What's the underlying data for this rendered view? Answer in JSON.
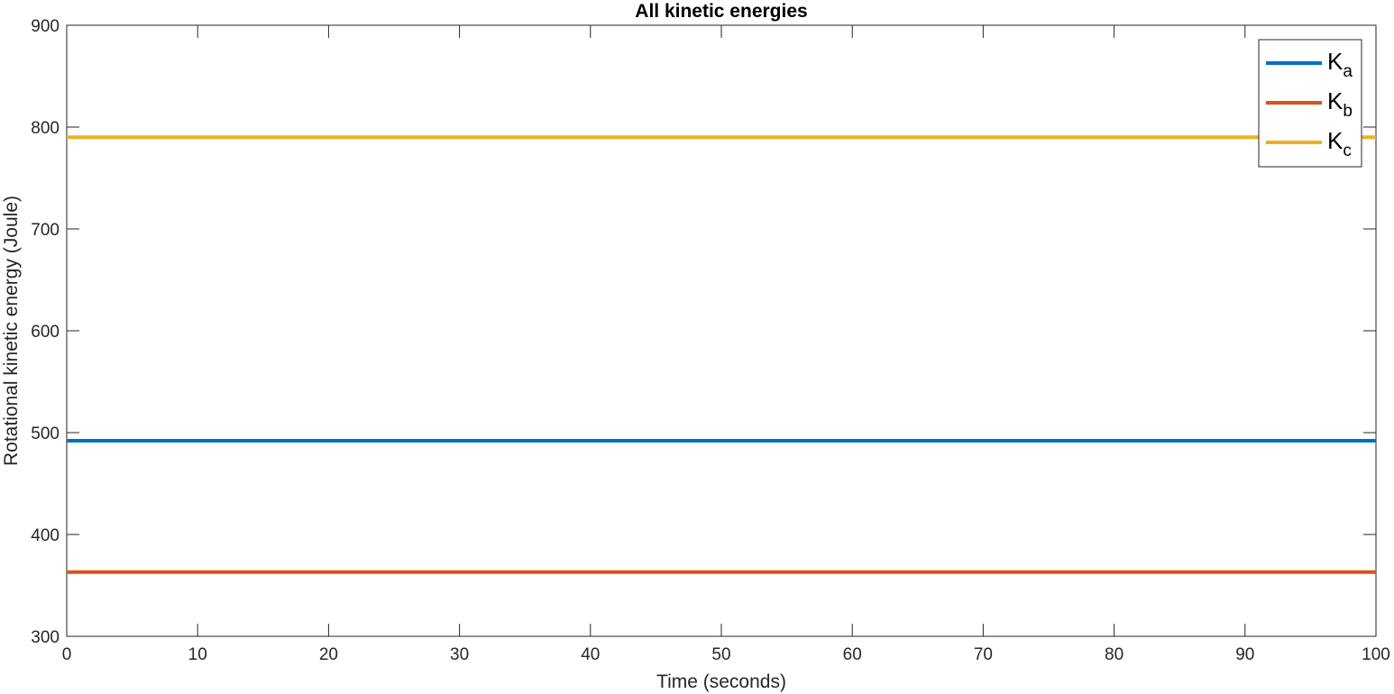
{
  "chart_data": {
    "type": "line",
    "title": "All kinetic energies",
    "xlabel": "Time (seconds)",
    "ylabel": "Rotational kinetic energy (Joule)",
    "xlim": [
      0,
      100
    ],
    "ylim": [
      300,
      900
    ],
    "xticks": [
      0,
      10,
      20,
      30,
      40,
      50,
      60,
      70,
      80,
      90,
      100
    ],
    "yticks": [
      300,
      400,
      500,
      600,
      700,
      800,
      900
    ],
    "grid": false,
    "legend_position": "top-right",
    "series": [
      {
        "name_base": "K",
        "name_sub": "a",
        "color": "#0072BD",
        "x": [
          0,
          100
        ],
        "y": [
          492,
          492
        ]
      },
      {
        "name_base": "K",
        "name_sub": "b",
        "color": "#D95319",
        "x": [
          0,
          100
        ],
        "y": [
          363,
          363
        ]
      },
      {
        "name_base": "K",
        "name_sub": "c",
        "color": "#EDB120",
        "x": [
          0,
          100
        ],
        "y": [
          790,
          790
        ]
      }
    ]
  }
}
